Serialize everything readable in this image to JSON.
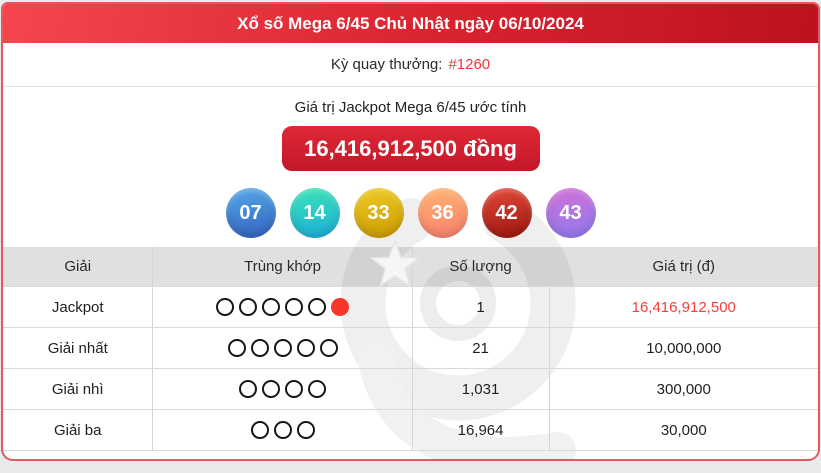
{
  "page": {
    "background": "#e8eaeb"
  },
  "card": {
    "border_color": "#e8565e"
  },
  "header": {
    "title": "Xổ số Mega 6/45 Chủ Nhật ngày 06/10/2024",
    "gradient_from": "#f5464e",
    "gradient_to": "#bd121e",
    "text_color": "#ffffff"
  },
  "draw": {
    "label": "Kỳ quay thưởng:",
    "value": "#1260",
    "value_color": "#f0353b"
  },
  "jackpot": {
    "title": "Giá trị Jackpot Mega 6/45 ước tính",
    "amount": "16,416,912,500 đồng",
    "button_gradient_from": "#de2836",
    "button_gradient_to": "#c4172a"
  },
  "winning_numbers": [
    {
      "number": "07",
      "color_from": "#55a9e8",
      "color_to": "#3261bf"
    },
    {
      "number": "14",
      "color_from": "#3ce4b4",
      "color_to": "#1badd9"
    },
    {
      "number": "33",
      "color_from": "#efcb25",
      "color_to": "#c99a02"
    },
    {
      "number": "36",
      "color_from": "#ffb570",
      "color_to": "#f87e6e"
    },
    {
      "number": "42",
      "color_from": "#e24a38",
      "color_to": "#9c140e"
    },
    {
      "number": "43",
      "color_from": "#d36fd6",
      "color_to": "#8d7bef"
    }
  ],
  "results_table": {
    "columns": [
      "Giải",
      "Trùng khớp",
      "Số lượng",
      "Giá trị (đ)"
    ],
    "rows": [
      {
        "prize": "Jackpot",
        "match_outlined": 5,
        "match_filled": 1,
        "quantity": "1",
        "value": "16,416,912,500",
        "value_highlight": true
      },
      {
        "prize": "Giải nhất",
        "match_outlined": 5,
        "match_filled": 0,
        "quantity": "21",
        "value": "10,000,000",
        "value_highlight": false
      },
      {
        "prize": "Giải nhì",
        "match_outlined": 4,
        "match_filled": 0,
        "quantity": "1,031",
        "value": "300,000",
        "value_highlight": false
      },
      {
        "prize": "Giải ba",
        "match_outlined": 3,
        "match_filled": 0,
        "quantity": "16,964",
        "value": "30,000",
        "value_highlight": false
      }
    ],
    "highlight_color": "#f4403c",
    "filled_ball_color": "#f6362a"
  },
  "watermark": {
    "icon": "vietlott-swirl-star-logo"
  }
}
